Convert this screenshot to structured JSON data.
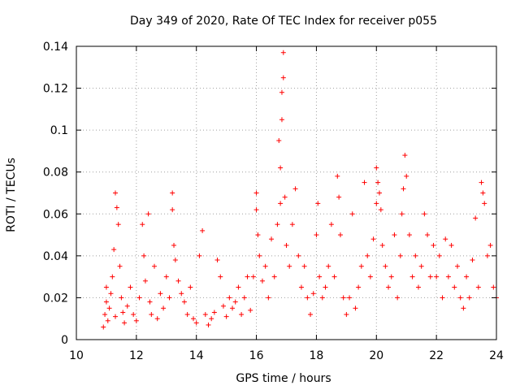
{
  "chart_data": {
    "type": "scatter",
    "title": "Day 349 of 2020, Rate Of TEC Index for receiver p055",
    "xlabel": "GPS time / hours",
    "ylabel": "ROTI / TECUs",
    "xlim": [
      10,
      24
    ],
    "ylim": [
      0,
      0.14
    ],
    "xticks": [
      10,
      12,
      14,
      16,
      18,
      20,
      22,
      24
    ],
    "xtick_labels": [
      "10",
      "12",
      "14",
      "16",
      "18",
      "20",
      "22",
      "24"
    ],
    "yticks": [
      0,
      0.02,
      0.04,
      0.06,
      0.08,
      0.1,
      0.12,
      0.14
    ],
    "ytick_labels": [
      "0",
      "0.02",
      "0.04",
      "0.06",
      "0.08",
      "0.1",
      "0.12",
      "0.14"
    ],
    "grid": true,
    "marker": "plus",
    "color": "#ff0000",
    "series": [
      {
        "name": "ROTI",
        "points": [
          [
            10.9,
            0.006
          ],
          [
            10.95,
            0.012
          ],
          [
            11.0,
            0.018
          ],
          [
            11.0,
            0.025
          ],
          [
            11.05,
            0.009
          ],
          [
            11.1,
            0.015
          ],
          [
            11.15,
            0.022
          ],
          [
            11.2,
            0.03
          ],
          [
            11.25,
            0.043
          ],
          [
            11.3,
            0.011
          ],
          [
            11.3,
            0.07
          ],
          [
            11.35,
            0.063
          ],
          [
            11.4,
            0.055
          ],
          [
            11.45,
            0.035
          ],
          [
            11.5,
            0.02
          ],
          [
            11.55,
            0.013
          ],
          [
            11.6,
            0.008
          ],
          [
            11.7,
            0.016
          ],
          [
            11.8,
            0.025
          ],
          [
            11.9,
            0.012
          ],
          [
            12.0,
            0.009
          ],
          [
            12.1,
            0.02
          ],
          [
            12.2,
            0.055
          ],
          [
            12.25,
            0.04
          ],
          [
            12.3,
            0.028
          ],
          [
            12.4,
            0.06
          ],
          [
            12.45,
            0.018
          ],
          [
            12.5,
            0.012
          ],
          [
            12.6,
            0.035
          ],
          [
            12.7,
            0.01
          ],
          [
            12.8,
            0.022
          ],
          [
            12.9,
            0.015
          ],
          [
            13.0,
            0.03
          ],
          [
            13.1,
            0.02
          ],
          [
            13.2,
            0.07
          ],
          [
            13.2,
            0.062
          ],
          [
            13.25,
            0.045
          ],
          [
            13.3,
            0.038
          ],
          [
            13.4,
            0.028
          ],
          [
            13.5,
            0.022
          ],
          [
            13.6,
            0.018
          ],
          [
            13.7,
            0.012
          ],
          [
            13.8,
            0.025
          ],
          [
            13.9,
            0.01
          ],
          [
            14.0,
            0.008
          ],
          [
            14.1,
            0.04
          ],
          [
            14.2,
            0.052
          ],
          [
            14.3,
            0.012
          ],
          [
            14.4,
            0.007
          ],
          [
            14.5,
            0.01
          ],
          [
            14.6,
            0.013
          ],
          [
            14.7,
            0.038
          ],
          [
            14.8,
            0.03
          ],
          [
            14.9,
            0.016
          ],
          [
            15.0,
            0.011
          ],
          [
            15.1,
            0.02
          ],
          [
            15.2,
            0.015
          ],
          [
            15.3,
            0.018
          ],
          [
            15.4,
            0.025
          ],
          [
            15.5,
            0.012
          ],
          [
            15.6,
            0.02
          ],
          [
            15.7,
            0.03
          ],
          [
            15.8,
            0.014
          ],
          [
            15.9,
            0.03
          ],
          [
            16.0,
            0.07
          ],
          [
            16.0,
            0.062
          ],
          [
            16.05,
            0.05
          ],
          [
            16.1,
            0.04
          ],
          [
            16.2,
            0.028
          ],
          [
            16.3,
            0.035
          ],
          [
            16.4,
            0.02
          ],
          [
            16.5,
            0.048
          ],
          [
            16.6,
            0.03
          ],
          [
            16.7,
            0.055
          ],
          [
            16.75,
            0.095
          ],
          [
            16.8,
            0.082
          ],
          [
            16.8,
            0.065
          ],
          [
            16.85,
            0.105
          ],
          [
            16.85,
            0.118
          ],
          [
            16.9,
            0.137
          ],
          [
            16.9,
            0.125
          ],
          [
            16.95,
            0.068
          ],
          [
            17.0,
            0.045
          ],
          [
            17.1,
            0.035
          ],
          [
            17.2,
            0.055
          ],
          [
            17.3,
            0.072
          ],
          [
            17.4,
            0.04
          ],
          [
            17.5,
            0.025
          ],
          [
            17.6,
            0.035
          ],
          [
            17.7,
            0.02
          ],
          [
            17.8,
            0.012
          ],
          [
            17.9,
            0.022
          ],
          [
            18.0,
            0.05
          ],
          [
            18.05,
            0.065
          ],
          [
            18.1,
            0.03
          ],
          [
            18.2,
            0.02
          ],
          [
            18.3,
            0.025
          ],
          [
            18.4,
            0.035
          ],
          [
            18.5,
            0.055
          ],
          [
            18.6,
            0.03
          ],
          [
            18.7,
            0.078
          ],
          [
            18.75,
            0.068
          ],
          [
            18.8,
            0.05
          ],
          [
            18.9,
            0.02
          ],
          [
            19.0,
            0.012
          ],
          [
            19.1,
            0.02
          ],
          [
            19.2,
            0.06
          ],
          [
            19.3,
            0.015
          ],
          [
            19.4,
            0.025
          ],
          [
            19.5,
            0.035
          ],
          [
            19.6,
            0.075
          ],
          [
            19.7,
            0.04
          ],
          [
            19.8,
            0.03
          ],
          [
            19.9,
            0.048
          ],
          [
            20.0,
            0.065
          ],
          [
            20.0,
            0.082
          ],
          [
            20.05,
            0.075
          ],
          [
            20.1,
            0.07
          ],
          [
            20.15,
            0.062
          ],
          [
            20.2,
            0.045
          ],
          [
            20.3,
            0.035
          ],
          [
            20.4,
            0.025
          ],
          [
            20.5,
            0.03
          ],
          [
            20.6,
            0.05
          ],
          [
            20.7,
            0.02
          ],
          [
            20.8,
            0.04
          ],
          [
            20.85,
            0.06
          ],
          [
            20.9,
            0.072
          ],
          [
            20.95,
            0.088
          ],
          [
            21.0,
            0.078
          ],
          [
            21.1,
            0.05
          ],
          [
            21.2,
            0.03
          ],
          [
            21.3,
            0.04
          ],
          [
            21.4,
            0.025
          ],
          [
            21.5,
            0.035
          ],
          [
            21.6,
            0.06
          ],
          [
            21.7,
            0.05
          ],
          [
            21.8,
            0.03
          ],
          [
            21.9,
            0.045
          ],
          [
            22.0,
            0.03
          ],
          [
            22.1,
            0.04
          ],
          [
            22.2,
            0.02
          ],
          [
            22.3,
            0.048
          ],
          [
            22.4,
            0.03
          ],
          [
            22.5,
            0.045
          ],
          [
            22.6,
            0.025
          ],
          [
            22.7,
            0.035
          ],
          [
            22.8,
            0.02
          ],
          [
            22.9,
            0.015
          ],
          [
            23.0,
            0.03
          ],
          [
            23.1,
            0.02
          ],
          [
            23.2,
            0.038
          ],
          [
            23.3,
            0.058
          ],
          [
            23.4,
            0.025
          ],
          [
            23.5,
            0.075
          ],
          [
            23.55,
            0.07
          ],
          [
            23.6,
            0.065
          ],
          [
            23.7,
            0.04
          ],
          [
            23.8,
            0.045
          ],
          [
            23.9,
            0.025
          ],
          [
            24.0,
            0.02
          ]
        ]
      }
    ]
  }
}
